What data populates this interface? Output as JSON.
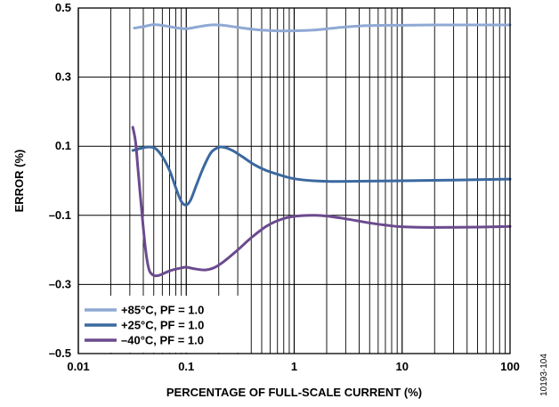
{
  "chart_data": {
    "type": "line",
    "title": "",
    "xlabel": "PERCENTAGE OF FULL-SCALE CURRENT (%)",
    "ylabel": "ERROR (%)",
    "x_scale": "log",
    "xlim": [
      0.01,
      100
    ],
    "ylim": [
      -0.5,
      0.5
    ],
    "x_ticks": [
      "0.01",
      "0.1",
      "1",
      "10",
      "100"
    ],
    "y_ticks": [
      "0.5",
      "0.3",
      "0.1",
      "–0.1",
      "–0.3",
      "–0.5"
    ],
    "grid": true,
    "legend_position": "bottom-left",
    "series": [
      {
        "name": "+85°C, PF = 1.0",
        "color": "#8fa9d4",
        "x": [
          0.033,
          0.04,
          0.05,
          0.065,
          0.08,
          0.1,
          0.13,
          0.17,
          0.22,
          0.3,
          0.45,
          0.7,
          1.0,
          1.5,
          2.5,
          4,
          7,
          10,
          20,
          40,
          100
        ],
        "y": [
          0.442,
          0.446,
          0.452,
          0.448,
          0.443,
          0.44,
          0.446,
          0.451,
          0.45,
          0.444,
          0.437,
          0.434,
          0.434,
          0.436,
          0.443,
          0.448,
          0.45,
          0.45,
          0.451,
          0.451,
          0.451
        ]
      },
      {
        "name": "+25°C, PF = 1.0",
        "color": "#3b69a0",
        "x": [
          0.032,
          0.038,
          0.045,
          0.052,
          0.06,
          0.07,
          0.08,
          0.09,
          0.1,
          0.11,
          0.125,
          0.145,
          0.17,
          0.2,
          0.23,
          0.27,
          0.33,
          0.42,
          0.55,
          0.75,
          1.0,
          1.5,
          2.5,
          5,
          10,
          30,
          100
        ],
        "y": [
          0.088,
          0.094,
          0.098,
          0.093,
          0.07,
          0.03,
          -0.02,
          -0.06,
          -0.07,
          -0.055,
          -0.01,
          0.04,
          0.082,
          0.097,
          0.096,
          0.087,
          0.07,
          0.048,
          0.03,
          0.016,
          0.006,
          0.0,
          -0.002,
          -0.001,
          0.0,
          0.002,
          0.005
        ]
      },
      {
        "name": "–40°C, PF = 1.0",
        "color": "#6b4a8e",
        "x": [
          0.032,
          0.034,
          0.036,
          0.039,
          0.042,
          0.045,
          0.048,
          0.052,
          0.058,
          0.065,
          0.075,
          0.09,
          0.1,
          0.12,
          0.15,
          0.18,
          0.22,
          0.3,
          0.4,
          0.55,
          0.75,
          1.0,
          1.5,
          2.0,
          3.0,
          5.0,
          7.0,
          10,
          20,
          50,
          100
        ],
        "y": [
          0.155,
          0.11,
          0.02,
          -0.1,
          -0.2,
          -0.255,
          -0.27,
          -0.275,
          -0.272,
          -0.265,
          -0.258,
          -0.252,
          -0.25,
          -0.255,
          -0.258,
          -0.252,
          -0.235,
          -0.2,
          -0.165,
          -0.132,
          -0.112,
          -0.103,
          -0.1,
          -0.102,
          -0.11,
          -0.122,
          -0.128,
          -0.133,
          -0.135,
          -0.134,
          -0.132
        ]
      }
    ]
  },
  "side_label": "10193-104"
}
